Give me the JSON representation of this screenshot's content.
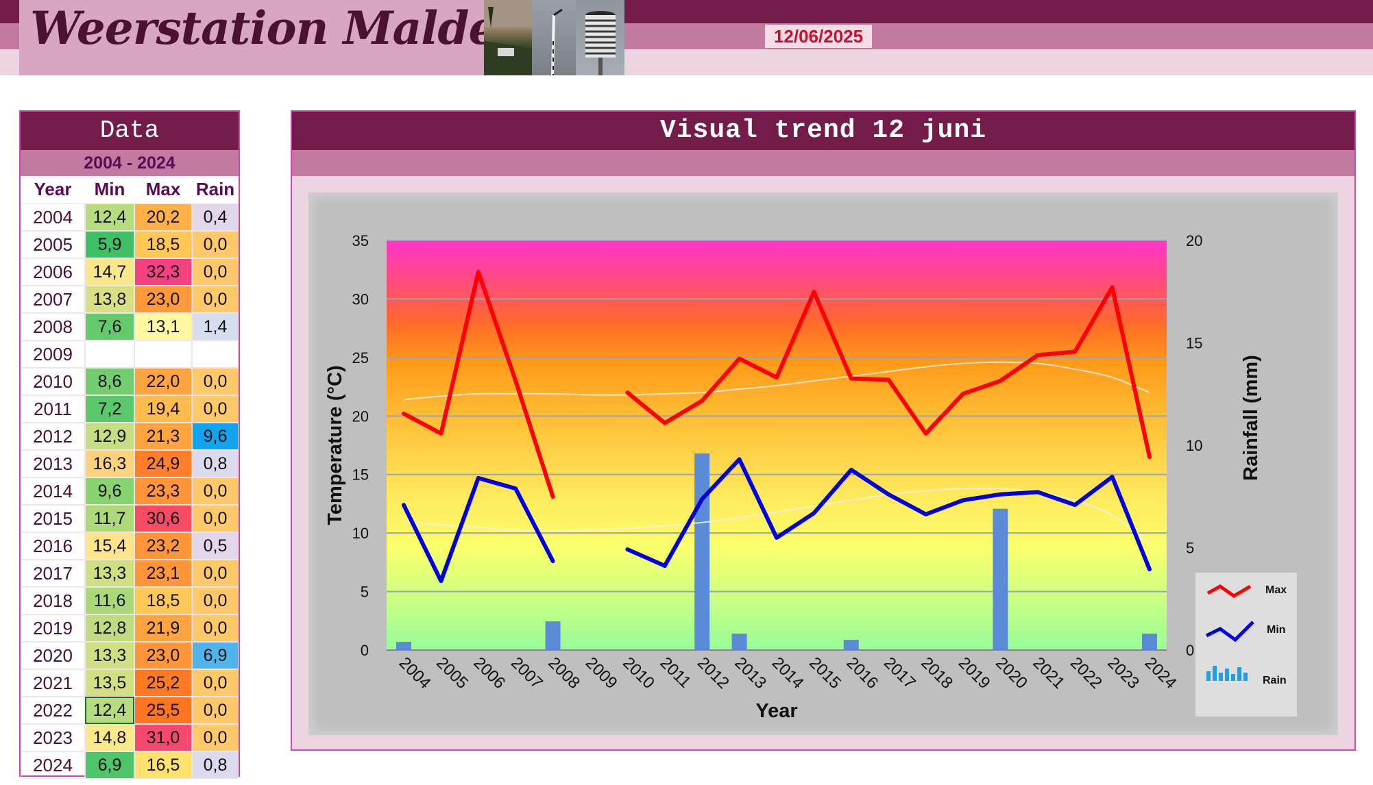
{
  "header": {
    "title": "Weerstation Malderen",
    "date": "12/06/2025"
  },
  "table": {
    "title": "Data",
    "range": "2004 - 2024",
    "columns": [
      "Year",
      "Min",
      "Max",
      "Rain"
    ],
    "rows": [
      {
        "year": "2004",
        "min": "12,4",
        "max": "20,2",
        "rain": "0,4",
        "c": [
          "#b7dc7f",
          "#ffb046",
          "#e2d7ea"
        ]
      },
      {
        "year": "2005",
        "min": "5,9",
        "max": "18,5",
        "rain": "0,0",
        "c": [
          "#3fbf67",
          "#ffc855",
          "#ffc96a"
        ]
      },
      {
        "year": "2006",
        "min": "14,7",
        "max": "32,3",
        "rain": "0,0",
        "c": [
          "#f9e88a",
          "#f44280",
          "#ffc96a"
        ]
      },
      {
        "year": "2007",
        "min": "13,8",
        "max": "23,0",
        "rain": "0,0",
        "c": [
          "#d9e084",
          "#ff9a3a",
          "#ffc96a"
        ]
      },
      {
        "year": "2008",
        "min": "7,6",
        "max": "13,1",
        "rain": "1,4",
        "c": [
          "#62c96c",
          "#fff8a0",
          "#d5deef"
        ]
      },
      {
        "year": "2009",
        "min": "",
        "max": "",
        "rain": "",
        "c": [
          "#ffffff",
          "#ffffff",
          "#ffffff"
        ]
      },
      {
        "year": "2010",
        "min": "8,6",
        "max": "22,0",
        "rain": "0,0",
        "c": [
          "#73cd6e",
          "#ffa43f",
          "#ffc96a"
        ]
      },
      {
        "year": "2011",
        "min": "7,2",
        "max": "19,4",
        "rain": "0,0",
        "c": [
          "#5ac86b",
          "#ffbb4c",
          "#ffc96a"
        ]
      },
      {
        "year": "2012",
        "min": "12,9",
        "max": "21,3",
        "rain": "9,6",
        "c": [
          "#c4de81",
          "#ffa43f",
          "#11a3ee"
        ]
      },
      {
        "year": "2013",
        "min": "16,3",
        "max": "24,9",
        "rain": "0,8",
        "c": [
          "#fcd27f",
          "#ff7f2a",
          "#dcdaec"
        ]
      },
      {
        "year": "2014",
        "min": "9,6",
        "max": "23,3",
        "rain": "0,0",
        "c": [
          "#88d270",
          "#ff963a",
          "#ffc96a"
        ]
      },
      {
        "year": "2015",
        "min": "11,7",
        "max": "30,6",
        "rain": "0,0",
        "c": [
          "#aed979",
          "#f54c62",
          "#ffc96a"
        ]
      },
      {
        "year": "2016",
        "min": "15,4",
        "max": "23,2",
        "rain": "0,5",
        "c": [
          "#fde38a",
          "#ff963a",
          "#e2d7ea"
        ]
      },
      {
        "year": "2017",
        "min": "13,3",
        "max": "23,1",
        "rain": "0,0",
        "c": [
          "#cfdf82",
          "#ff963a",
          "#ffc96a"
        ]
      },
      {
        "year": "2018",
        "min": "11,6",
        "max": "18,5",
        "rain": "0,0",
        "c": [
          "#acd978",
          "#ffc855",
          "#ffc96a"
        ]
      },
      {
        "year": "2019",
        "min": "12,8",
        "max": "21,9",
        "rain": "0,0",
        "c": [
          "#bfdd80",
          "#ffa43f",
          "#ffc96a"
        ]
      },
      {
        "year": "2020",
        "min": "13,3",
        "max": "23,0",
        "rain": "6,9",
        "c": [
          "#cfdf82",
          "#ff963a",
          "#50b4ec"
        ]
      },
      {
        "year": "2021",
        "min": "13,5",
        "max": "25,2",
        "rain": "0,0",
        "c": [
          "#d3df83",
          "#ff7a22",
          "#ffc96a"
        ]
      },
      {
        "year": "2022",
        "min": "12,4",
        "max": "25,5",
        "rain": "0,0",
        "c": [
          "#b7dc7f",
          "#ff7520",
          "#ffc96a"
        ]
      },
      {
        "year": "2023",
        "min": "14,8",
        "max": "31,0",
        "rain": "0,0",
        "c": [
          "#fae98a",
          "#f24a6e",
          "#ffc96a"
        ]
      },
      {
        "year": "2024",
        "min": "6,9",
        "max": "16,5",
        "rain": "0,8",
        "c": [
          "#4fc56a",
          "#ffe16e",
          "#dcdaec"
        ]
      }
    ]
  },
  "trend": {
    "title": "Visual trend 12 juni"
  },
  "colors": {
    "max_line": "#ff0000",
    "min_line": "#0000dd",
    "rain_bar": "#5b8bd6",
    "trend_line": "#f2f0e6"
  },
  "chart_data": {
    "type": "line",
    "x": [
      "2004",
      "2005",
      "2006",
      "2007",
      "2008",
      "2009",
      "2010",
      "2011",
      "2012",
      "2013",
      "2014",
      "2015",
      "2016",
      "2017",
      "2018",
      "2019",
      "2020",
      "2021",
      "2022",
      "2023",
      "2024"
    ],
    "xlabel": "Year",
    "ylabel": "Temperature (°C)",
    "y2label": "Rainfall (mm)",
    "ylim": [
      0,
      35
    ],
    "y2lim": [
      0,
      20
    ],
    "yticks": [
      0,
      5,
      10,
      15,
      20,
      25,
      30,
      35
    ],
    "y2ticks": [
      0,
      5,
      10,
      15,
      20
    ],
    "grid": true,
    "legend_position": "right",
    "series": [
      {
        "name": "Max",
        "type": "line",
        "axis": "left",
        "values": [
          20.2,
          18.5,
          32.3,
          23.0,
          13.1,
          null,
          22.0,
          19.4,
          21.3,
          24.9,
          23.3,
          30.6,
          23.2,
          23.1,
          18.5,
          21.9,
          23.0,
          25.2,
          25.5,
          31.0,
          16.5
        ]
      },
      {
        "name": "Min",
        "type": "line",
        "axis": "left",
        "values": [
          12.4,
          5.9,
          14.7,
          13.8,
          7.6,
          null,
          8.6,
          7.2,
          12.9,
          16.3,
          9.6,
          11.7,
          15.4,
          13.3,
          11.6,
          12.8,
          13.3,
          13.5,
          12.4,
          14.8,
          6.9
        ]
      },
      {
        "name": "Rain",
        "type": "bar",
        "axis": "right",
        "values": [
          0.4,
          0.0,
          0.0,
          0.0,
          1.4,
          null,
          0.0,
          0.0,
          9.6,
          0.8,
          0.0,
          0.0,
          0.5,
          0.0,
          0.0,
          0.0,
          6.9,
          0.0,
          0.0,
          0.0,
          0.8
        ]
      }
    ],
    "trend_max": [
      21.4,
      21.7,
      21.9,
      21.9,
      21.9,
      21.8,
      21.8,
      21.9,
      22.0,
      22.3,
      22.6,
      23.0,
      23.4,
      23.8,
      24.2,
      24.5,
      24.6,
      24.5,
      24.0,
      23.3,
      22.0
    ],
    "trend_min": [
      11.0,
      10.7,
      10.5,
      10.3,
      10.2,
      10.3,
      10.4,
      10.6,
      10.9,
      11.3,
      11.8,
      12.3,
      12.8,
      13.3,
      13.6,
      13.8,
      13.8,
      13.5,
      12.8,
      11.5,
      9.2
    ]
  }
}
